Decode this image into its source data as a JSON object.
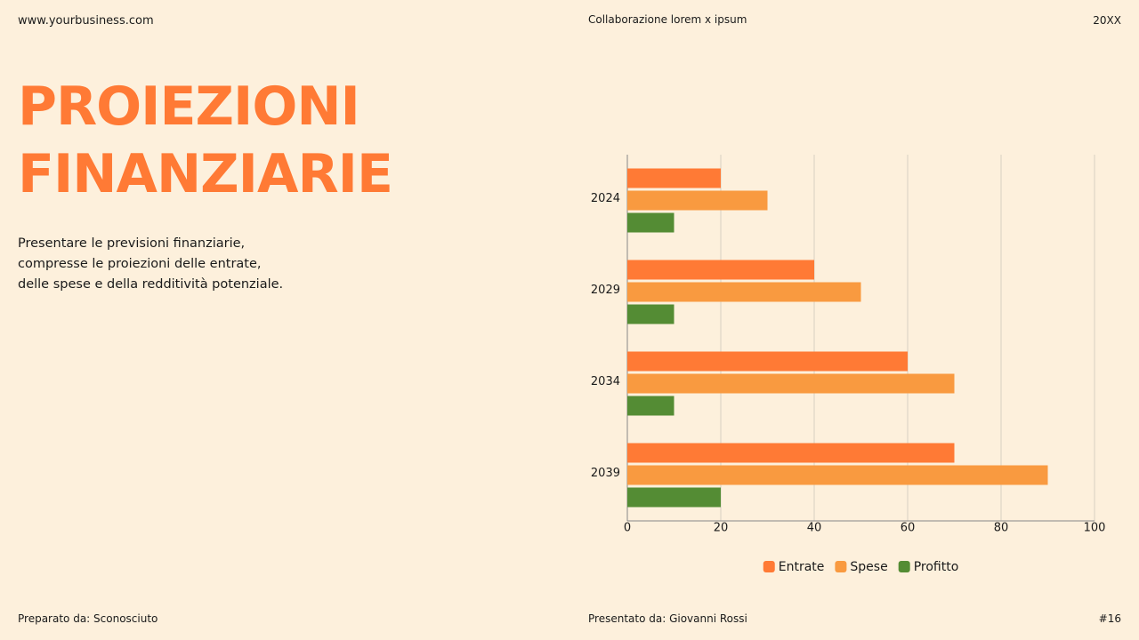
{
  "header": {
    "website": "www.yourbusiness.com",
    "collaboration": "Collaborazione lorem x ipsum",
    "year": "20XX"
  },
  "title": "PROIEZIONI FINANZIARIE",
  "description": "Presentare le previsioni finanziarie, compresse le proiezioni delle entrate, delle spese e della redditività potenziale.",
  "footer": {
    "prepared": "Preparato da: Sconosciuto",
    "presented": "Presentato da: Giovanni Rossi",
    "page": "#16"
  },
  "chart_data": {
    "type": "hbar",
    "categories": [
      "2024",
      "2029",
      "2034",
      "2039"
    ],
    "series": [
      {
        "name": "Entrate",
        "color": "#ff7a35",
        "values": [
          20,
          40,
          60,
          70
        ]
      },
      {
        "name": "Spese",
        "color": "#f99a40",
        "values": [
          30,
          50,
          70,
          90
        ]
      },
      {
        "name": "Profitto",
        "color": "#548c34",
        "values": [
          10,
          10,
          10,
          20
        ]
      }
    ],
    "xlim": [
      0,
      100
    ],
    "xticks": [
      0,
      20,
      40,
      60,
      80,
      100
    ],
    "grid": true,
    "legend": "bottom"
  }
}
